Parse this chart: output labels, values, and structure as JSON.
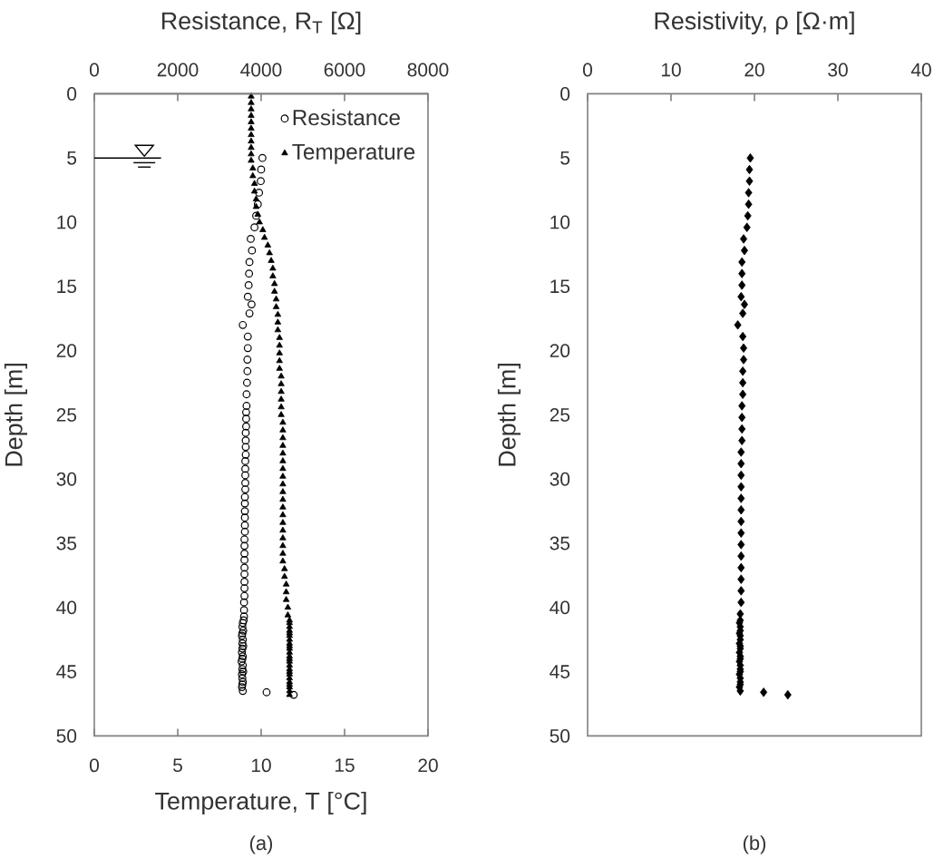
{
  "chart_data": [
    {
      "type": "scatter",
      "x2label": "Resistance, R$_{T}$ [Ω]",
      "xlabel": "Temperature, T [°C]",
      "ylabel": "Depth [m]",
      "xlim": [
        0,
        20
      ],
      "xticks": [
        0,
        5,
        10,
        15,
        20
      ],
      "x2lim": [
        0,
        8000
      ],
      "x2ticks": [
        0,
        2000,
        4000,
        6000,
        8000
      ],
      "ylim": [
        50,
        0
      ],
      "yticks": [
        0,
        5,
        10,
        15,
        20,
        25,
        30,
        35,
        40,
        45,
        50
      ],
      "legend": "top right",
      "ref_lines": [
        {
          "axis": "y",
          "value": 5
        }
      ],
      "annotations": [
        "(a)"
      ],
      "series": [
        {
          "name": "Resistance",
          "color": "#000000",
          "marker": "circle",
          "axis": "x2",
          "x": [
            4030,
            4000,
            3990,
            3950,
            3920,
            3880,
            3840,
            3750,
            3780,
            3720,
            3710,
            3700,
            3680,
            3770,
            3720,
            3560,
            3680,
            3680,
            3670,
            3670,
            3660,
            3650,
            3650,
            3640,
            3640,
            3640,
            3630,
            3630,
            3630,
            3630,
            3620,
            3620,
            3620,
            3620,
            3620,
            3610,
            3610,
            3610,
            3610,
            3610,
            3610,
            3600,
            3600,
            3600,
            3600,
            3600,
            3600,
            3600,
            3600,
            3600,
            3590,
            3590,
            3590,
            3580,
            3560,
            3550,
            3570,
            3550,
            3540,
            3560,
            3550,
            3570,
            3550,
            3540,
            3560,
            3550,
            3530,
            3560,
            3550,
            3570,
            3540,
            3550,
            3560,
            3550,
            3540,
            3560,
            4130,
            4780
          ],
          "values": [
            5.0,
            5.9,
            6.8,
            7.7,
            8.6,
            9.5,
            10.4,
            11.3,
            12.2,
            13.1,
            14.0,
            14.9,
            15.8,
            16.4,
            17.1,
            18.0,
            18.9,
            19.8,
            20.7,
            21.6,
            22.5,
            23.4,
            24.3,
            24.8,
            25.3,
            25.9,
            26.4,
            27.0,
            27.5,
            28.1,
            28.6,
            29.2,
            29.7,
            30.3,
            30.8,
            31.4,
            31.9,
            32.5,
            33.0,
            33.6,
            34.1,
            34.7,
            35.2,
            35.8,
            36.3,
            36.9,
            37.4,
            38.0,
            38.5,
            39.1,
            39.6,
            40.2,
            40.7,
            41.0,
            41.2,
            41.5,
            41.8,
            42.0,
            42.2,
            42.5,
            42.8,
            43.0,
            43.2,
            43.5,
            43.8,
            44.0,
            44.2,
            44.5,
            44.8,
            45.0,
            45.2,
            45.5,
            45.8,
            46.0,
            46.2,
            46.5,
            46.6,
            46.8
          ]
        },
        {
          "name": "Temperature",
          "color": "#000000",
          "marker": "triangle",
          "x": [
            9.4,
            9.4,
            9.4,
            9.4,
            9.4,
            9.4,
            9.4,
            9.4,
            9.4,
            9.4,
            9.4,
            9.5,
            9.5,
            9.6,
            9.6,
            9.7,
            9.7,
            9.8,
            9.9,
            10.1,
            10.2,
            10.4,
            10.5,
            10.6,
            10.7,
            10.7,
            10.8,
            10.8,
            10.9,
            10.9,
            11.0,
            11.0,
            11.0,
            11.1,
            11.1,
            11.1,
            11.1,
            11.1,
            11.2,
            11.2,
            11.2,
            11.2,
            11.2,
            11.2,
            11.3,
            11.3,
            11.3,
            11.3,
            11.3,
            11.3,
            11.3,
            11.3,
            11.3,
            11.3,
            11.3,
            11.3,
            11.3,
            11.3,
            11.3,
            11.3,
            11.3,
            11.3,
            11.3,
            11.4,
            11.4,
            11.5,
            11.5,
            11.5,
            11.6,
            11.6,
            11.7,
            11.7,
            11.7,
            11.7,
            11.7,
            11.7,
            11.7,
            11.7,
            11.7,
            11.7,
            11.7,
            11.7,
            11.7,
            11.7,
            11.7,
            11.7,
            11.7,
            11.7,
            11.7,
            11.7,
            11.7,
            11.7,
            11.7,
            11.7
          ],
          "values": [
            0.2,
            0.7,
            1.2,
            1.7,
            2.2,
            2.7,
            3.2,
            3.7,
            4.2,
            4.7,
            5.2,
            5.8,
            6.4,
            7.0,
            7.6,
            8.2,
            8.8,
            9.4,
            10.0,
            10.6,
            11.2,
            11.8,
            12.4,
            13.0,
            13.6,
            14.2,
            14.8,
            15.4,
            16.0,
            16.6,
            17.2,
            17.8,
            18.4,
            19.0,
            19.6,
            20.2,
            20.8,
            21.4,
            22.0,
            22.6,
            23.2,
            23.8,
            24.4,
            25.0,
            25.6,
            26.2,
            26.8,
            27.4,
            28.0,
            28.6,
            29.2,
            29.8,
            30.4,
            31.0,
            31.6,
            32.2,
            32.8,
            33.4,
            34.0,
            34.6,
            35.2,
            35.8,
            36.4,
            37.0,
            37.6,
            38.2,
            38.8,
            39.4,
            40.0,
            40.6,
            41.0,
            41.2,
            41.5,
            41.8,
            42.0,
            42.2,
            42.5,
            42.8,
            43.0,
            43.2,
            43.5,
            43.8,
            44.0,
            44.2,
            44.5,
            44.8,
            45.0,
            45.2,
            45.5,
            45.8,
            46.0,
            46.2,
            46.5,
            46.8
          ]
        }
      ]
    },
    {
      "type": "scatter",
      "xlabel": "Resistivity, ρ [Ω·m]",
      "ylabel": "Depth [m]",
      "xlim": [
        0,
        40
      ],
      "xticks": [
        0,
        10,
        20,
        30,
        40
      ],
      "ylim": [
        50,
        0
      ],
      "yticks": [
        0,
        5,
        10,
        15,
        20,
        25,
        30,
        35,
        40,
        45,
        50
      ],
      "annotations": [
        "(b)"
      ],
      "series": [
        {
          "color": "#000000",
          "marker": "diamond",
          "x": [
            19.5,
            19.4,
            19.4,
            19.3,
            19.3,
            19.2,
            19.1,
            18.7,
            18.8,
            18.5,
            18.5,
            18.5,
            18.4,
            18.8,
            18.6,
            18.0,
            18.6,
            18.7,
            18.7,
            18.6,
            18.6,
            18.6,
            18.5,
            18.5,
            18.5,
            18.5,
            18.4,
            18.4,
            18.4,
            18.4,
            18.4,
            18.4,
            18.4,
            18.4,
            18.4,
            18.4,
            18.4,
            18.4,
            18.4,
            18.4,
            18.3,
            18.3,
            18.2,
            18.3,
            18.3,
            18.2,
            18.3,
            18.3,
            18.2,
            18.3,
            18.3,
            18.2,
            18.3,
            18.3,
            18.2,
            18.3,
            18.3,
            18.3,
            18.2,
            18.3,
            18.3,
            18.3,
            18.2,
            18.3,
            21.1,
            24.0
          ],
          "values": [
            5.0,
            5.9,
            6.8,
            7.7,
            8.6,
            9.5,
            10.4,
            11.3,
            12.2,
            13.1,
            14.0,
            14.9,
            15.8,
            16.4,
            17.1,
            18.0,
            18.9,
            19.8,
            20.7,
            21.6,
            22.5,
            23.4,
            24.3,
            25.2,
            26.1,
            27.0,
            27.9,
            28.8,
            29.7,
            30.6,
            31.5,
            32.4,
            33.3,
            34.2,
            35.1,
            36.0,
            36.9,
            37.8,
            38.7,
            39.6,
            40.5,
            41.0,
            41.2,
            41.5,
            41.8,
            42.0,
            42.2,
            42.5,
            42.8,
            43.0,
            43.2,
            43.5,
            43.8,
            44.0,
            44.2,
            44.5,
            44.8,
            45.0,
            45.2,
            45.5,
            45.8,
            46.0,
            46.2,
            46.5,
            46.6,
            46.8
          ]
        }
      ]
    }
  ]
}
